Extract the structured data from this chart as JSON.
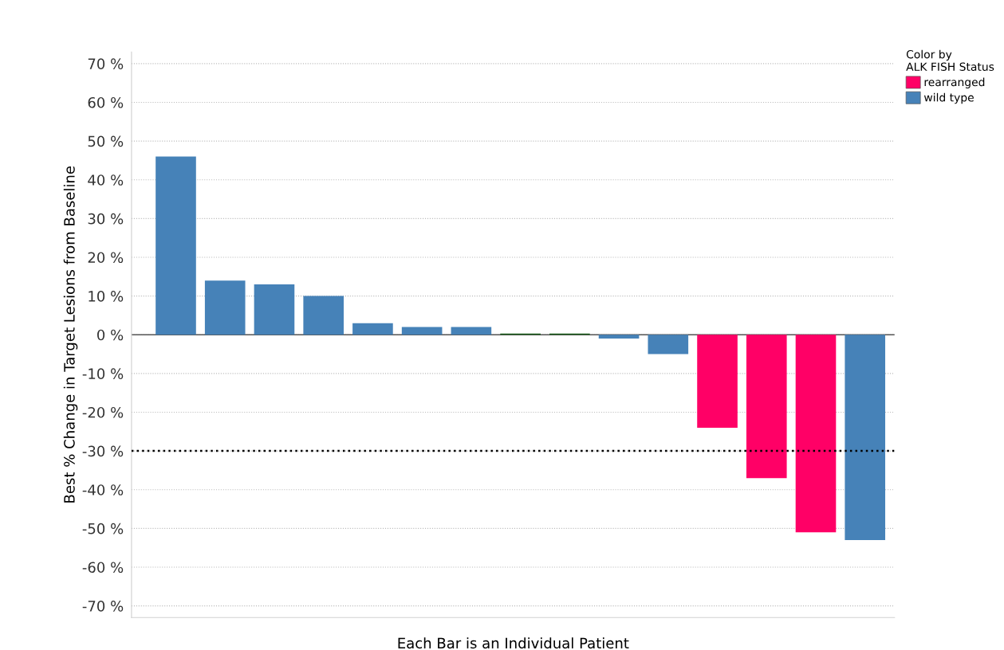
{
  "chart_data": {
    "type": "bar",
    "xlabel": "Each Bar is an Individual Patient",
    "ylabel": "Best % Change in Target Lesions from Baseline",
    "legend_title": "Color by\nALK FISH Status",
    "categories": [
      null,
      null,
      null,
      null,
      null,
      null,
      null,
      null,
      null,
      null,
      null,
      null,
      null,
      null,
      null
    ],
    "series": [
      {
        "name": "rearranged",
        "color": "#ff0066",
        "values": [
          null,
          null,
          null,
          null,
          null,
          null,
          null,
          null,
          null,
          null,
          null,
          -24,
          -37,
          -51,
          null
        ]
      },
      {
        "name": "wild type",
        "color": "#4682b8",
        "values": [
          46,
          14,
          13,
          10,
          3,
          2,
          2,
          null,
          null,
          -1,
          -5,
          null,
          null,
          null,
          -53
        ]
      },
      {
        "color": "#1a5c1a",
        "values": [
          null,
          null,
          null,
          null,
          null,
          null,
          null,
          0.3,
          0.3,
          null,
          null,
          null,
          null,
          null,
          null
        ]
      }
    ],
    "ylim": [
      -73,
      73
    ],
    "yticks": [
      {
        "value": -70,
        "label": "-70 %"
      },
      {
        "value": -60,
        "label": "-60 %"
      },
      {
        "value": -50,
        "label": "-50 %"
      },
      {
        "value": -40,
        "label": "-40 %"
      },
      {
        "value": -30,
        "label": "-30 %"
      },
      {
        "value": -20,
        "label": "-20 %"
      },
      {
        "value": -10,
        "label": "-10 %"
      },
      {
        "value": 0,
        "label": "0 %"
      },
      {
        "value": 10,
        "label": "10 %"
      },
      {
        "value": 20,
        "label": "20 %"
      },
      {
        "value": 30,
        "label": "30 %"
      },
      {
        "value": 40,
        "label": "40 %"
      },
      {
        "value": 50,
        "label": "50 %"
      },
      {
        "value": 60,
        "label": "60 %"
      },
      {
        "value": 70,
        "label": "70 %"
      }
    ],
    "ref_lines": [
      {
        "axis": "y",
        "value": -30,
        "color": "#000000",
        "line_style": "dotted"
      }
    ],
    "grid": "y",
    "legend": "top right",
    "tick_labels": "y"
  }
}
